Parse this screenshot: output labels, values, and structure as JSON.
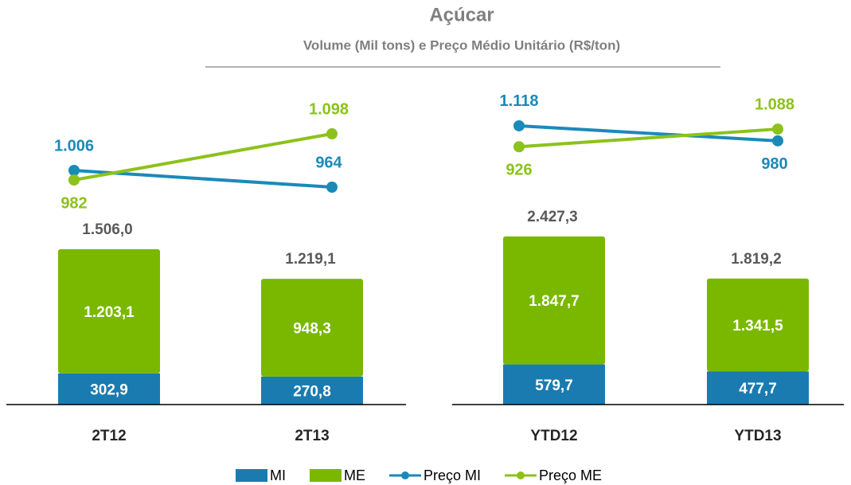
{
  "title": "Açúcar",
  "subtitle": "Volume (Mil tons) e Preço Médio Unitário (R$/ton)",
  "chart_data": [
    {
      "type": "bar",
      "stacked": true,
      "categories": [
        "2T12",
        "2T13"
      ],
      "ylim": [
        0,
        3150
      ],
      "y2lim": [
        418,
        1234
      ],
      "series": [
        {
          "name": "MI",
          "color": "#1a7bb0",
          "values": [
            302.9,
            270.8
          ],
          "value_labels": [
            "302,9",
            "270,8"
          ]
        },
        {
          "name": "ME",
          "color": "#7ab800",
          "values": [
            1203.1,
            948.3
          ],
          "value_labels": [
            "1.203,1",
            "948,3"
          ]
        },
        {
          "name": "Preço MI",
          "type": "line",
          "axis": "y2",
          "color": "#1a8ab8",
          "values": [
            1006,
            964
          ],
          "value_labels": [
            "1.006",
            "964"
          ]
        },
        {
          "name": "Preço ME",
          "type": "line",
          "axis": "y2",
          "color": "#8cc21a",
          "values": [
            982,
            1098
          ],
          "value_labels": [
            "982",
            "1.098"
          ]
        }
      ],
      "totals": [
        1506.0,
        1219.1
      ],
      "total_labels": [
        "1.506,0",
        "1.219,1"
      ]
    },
    {
      "type": "bar",
      "stacked": true,
      "categories": [
        "YTD12",
        "YTD13"
      ],
      "ylim": [
        0,
        4690
      ],
      "y2lim": [
        -1437,
        1541
      ],
      "series": [
        {
          "name": "MI",
          "color": "#1a7bb0",
          "values": [
            579.7,
            477.7
          ],
          "value_labels": [
            "579,7",
            "477,7"
          ]
        },
        {
          "name": "ME",
          "color": "#7ab800",
          "values": [
            1847.7,
            1341.5
          ],
          "value_labels": [
            "1.847,7",
            "1.341,5"
          ]
        },
        {
          "name": "Preço MI",
          "type": "line",
          "axis": "y2",
          "color": "#1a8ab8",
          "values": [
            1118,
            980
          ],
          "value_labels": [
            "1.118",
            "980"
          ]
        },
        {
          "name": "Preço ME",
          "type": "line",
          "axis": "y2",
          "color": "#8cc21a",
          "values": [
            926,
            1088
          ],
          "value_labels": [
            "926",
            "1.088"
          ]
        }
      ],
      "totals": [
        2427.3,
        1819.2
      ],
      "total_labels": [
        "2.427,3",
        "1.819,2"
      ]
    }
  ]
}
